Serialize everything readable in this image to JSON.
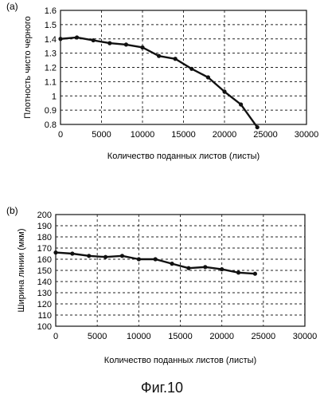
{
  "figure_caption": "Фиг.10",
  "chart_data": [
    {
      "type": "line",
      "panel_label": "(a)",
      "xlabel": "Количество поданных листов (листы)",
      "ylabel": "Плотность чисто черного",
      "xlim": [
        0,
        30000
      ],
      "ylim": [
        0.8,
        1.6
      ],
      "x_ticks": [
        "0",
        "5000",
        "10000",
        "15000",
        "20000",
        "25000",
        "30000"
      ],
      "y_ticks": [
        "0.8",
        "0.9",
        "1",
        "1.1",
        "1.2",
        "1.3",
        "1.4",
        "1.5",
        "1.6"
      ],
      "grid": true,
      "series": [
        {
          "color": "#111111",
          "x": [
            0,
            2000,
            4000,
            6000,
            8000,
            10000,
            12000,
            14000,
            16000,
            18000,
            20000,
            22000,
            24000
          ],
          "y": [
            1.4,
            1.41,
            1.39,
            1.37,
            1.36,
            1.34,
            1.28,
            1.26,
            1.19,
            1.13,
            1.03,
            0.94,
            0.78
          ]
        }
      ]
    },
    {
      "type": "line",
      "panel_label": "(b)",
      "xlabel": "Количество поданных листов (листы)",
      "ylabel": "Ширина линии (мкм)",
      "xlim": [
        0,
        30000
      ],
      "ylim": [
        100,
        200
      ],
      "x_ticks": [
        "0",
        "5000",
        "10000",
        "15000",
        "20000",
        "25000",
        "30000"
      ],
      "y_ticks": [
        "100",
        "110",
        "120",
        "130",
        "140",
        "150",
        "160",
        "170",
        "180",
        "190",
        "200"
      ],
      "grid": true,
      "series": [
        {
          "color": "#111111",
          "x": [
            0,
            2000,
            4000,
            6000,
            8000,
            10000,
            12000,
            14000,
            16000,
            18000,
            20000,
            22000,
            24000
          ],
          "y": [
            166,
            165,
            163,
            162,
            163,
            160,
            160,
            156,
            152,
            153,
            151,
            148,
            147
          ]
        }
      ]
    }
  ]
}
